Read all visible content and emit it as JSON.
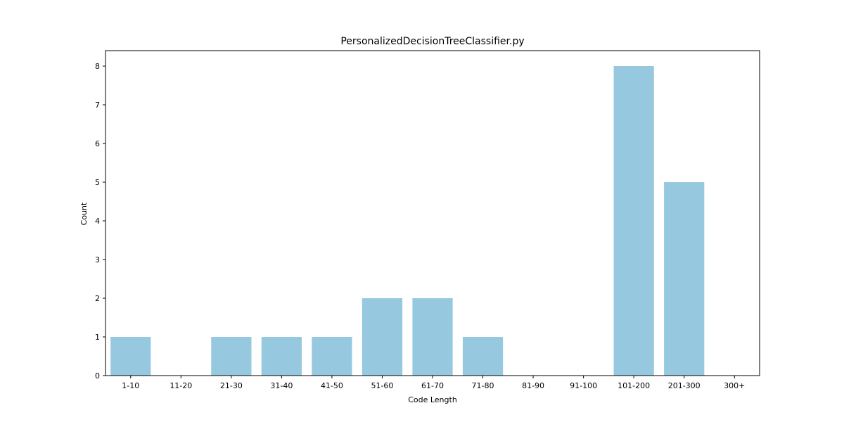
{
  "chart_data": {
    "type": "bar",
    "title": "PersonalizedDecisionTreeClassifier.py",
    "xlabel": "Code Length",
    "ylabel": "Count",
    "categories": [
      "1-10",
      "11-20",
      "21-30",
      "31-40",
      "41-50",
      "51-60",
      "61-70",
      "71-80",
      "81-90",
      "91-100",
      "101-200",
      "201-300",
      "300+"
    ],
    "values": [
      1,
      0,
      1,
      1,
      1,
      2,
      2,
      1,
      0,
      0,
      8,
      5,
      0
    ],
    "ylim": [
      0,
      8.4
    ],
    "yticks": [
      0,
      1,
      2,
      3,
      4,
      5,
      6,
      7,
      8
    ],
    "grid": false,
    "bar_color": "#96c9df"
  }
}
